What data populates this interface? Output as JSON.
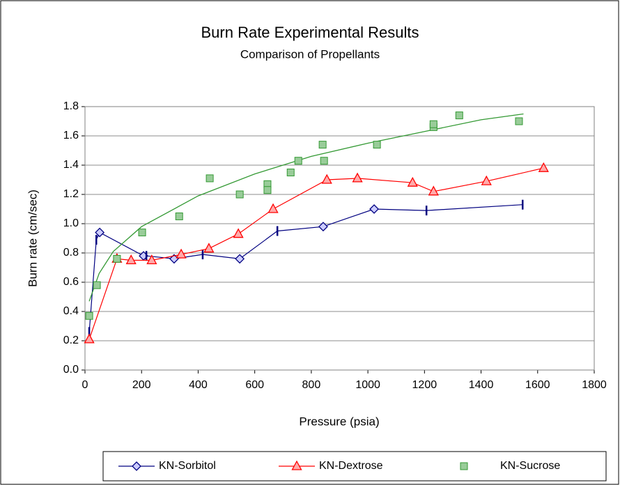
{
  "chart_data": {
    "type": "scatter",
    "title": "Burn Rate Experimental Results",
    "subtitle": "Comparison of Propellants",
    "x_label": "Pressure  (psia)",
    "y_label": "Burn rate  (cm/sec)",
    "xlim": [
      0,
      1800
    ],
    "xticks": [
      0,
      200,
      400,
      600,
      800,
      1000,
      1200,
      1400,
      1600,
      1800
    ],
    "ylim": [
      0,
      1.8
    ],
    "yticks": [
      {
        "value": 0,
        "label": "0.0"
      },
      {
        "value": 0.2,
        "label": "0.2"
      },
      {
        "value": 0.4,
        "label": "0.4"
      },
      {
        "value": 0.6,
        "label": "0.6"
      },
      {
        "value": 0.8,
        "label": "0.8"
      },
      {
        "value": 1.0,
        "label": "1.0"
      },
      {
        "value": 1.2,
        "label": "1.2"
      },
      {
        "value": 1.4,
        "label": "1.4"
      },
      {
        "value": 1.6,
        "label": "1.6"
      },
      {
        "value": 1.8,
        "label": "1.8"
      }
    ],
    "grid": true,
    "legend": "bottom",
    "series": [
      {
        "name": "KN-Sorbitol",
        "color": "#000080",
        "marker": "diamond",
        "line": true,
        "x": [
          15,
          40,
          52,
          207,
          217,
          315,
          416,
          547,
          680,
          842,
          1022,
          1207,
          1547
        ],
        "values": [
          0.26,
          0.89,
          0.94,
          0.78,
          0.78,
          0.76,
          0.79,
          0.76,
          0.95,
          0.98,
          1.1,
          1.09,
          1.13
        ],
        "markers": [
          "dash",
          "dash",
          "diamond",
          "diamond",
          "dash",
          "diamond",
          "dash",
          "diamond",
          "dash",
          "diamond",
          "diamond",
          "dash",
          "dash"
        ]
      },
      {
        "name": "KN-Dextrose",
        "color": "#ff0000",
        "marker": "triangle",
        "line": true,
        "x": [
          15,
          113,
          163,
          236,
          340,
          438,
          542,
          665,
          855,
          963,
          1158,
          1232,
          1419,
          1621
        ],
        "values": [
          0.21,
          0.76,
          0.75,
          0.75,
          0.79,
          0.83,
          0.93,
          1.1,
          1.3,
          1.31,
          1.28,
          1.22,
          1.29,
          1.38
        ]
      },
      {
        "name": "KN-Sucrose",
        "color": "#339933",
        "marker": "square",
        "line": false,
        "x": [
          15,
          42,
          113,
          202,
          333,
          441,
          547,
          645,
          645,
          727,
          754,
          840,
          845,
          1032,
          1232,
          1232,
          1323,
          1534
        ],
        "values": [
          0.37,
          0.58,
          0.76,
          0.94,
          1.05,
          1.31,
          1.2,
          1.27,
          1.23,
          1.35,
          1.43,
          1.54,
          1.43,
          1.54,
          1.66,
          1.68,
          1.74,
          1.7
        ],
        "trendline": {
          "x": [
            15,
            50,
            100,
            200,
            400,
            600,
            800,
            1000,
            1200,
            1400,
            1550
          ],
          "values": [
            0.47,
            0.66,
            0.81,
            0.98,
            1.19,
            1.34,
            1.46,
            1.55,
            1.63,
            1.71,
            1.75
          ]
        }
      }
    ]
  }
}
